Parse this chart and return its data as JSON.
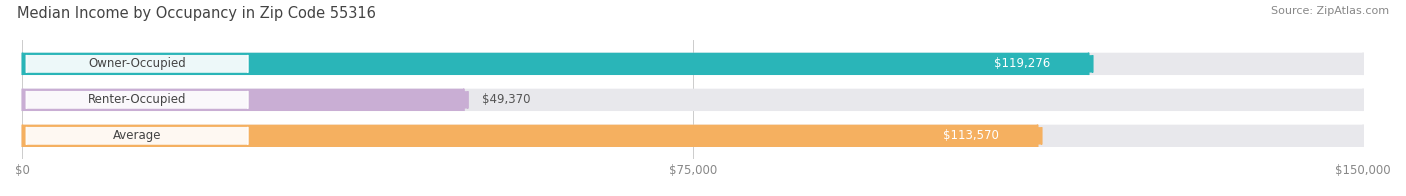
{
  "title": "Median Income by Occupancy in Zip Code 55316",
  "source": "Source: ZipAtlas.com",
  "categories": [
    "Owner-Occupied",
    "Renter-Occupied",
    "Average"
  ],
  "values": [
    119276,
    49370,
    113570
  ],
  "bar_colors": [
    "#2ab5b8",
    "#c9aed4",
    "#f5b060"
  ],
  "bar_bg_color": "#e8e8ec",
  "value_labels": [
    "$119,276",
    "$49,370",
    "$113,570"
  ],
  "xlim": [
    0,
    150000
  ],
  "xticks": [
    0,
    75000,
    150000
  ],
  "xtick_labels": [
    "$0",
    "$75,000",
    "$150,000"
  ],
  "title_fontsize": 10.5,
  "source_fontsize": 8,
  "label_fontsize": 8.5,
  "value_fontsize": 8.5,
  "background_color": "#ffffff"
}
